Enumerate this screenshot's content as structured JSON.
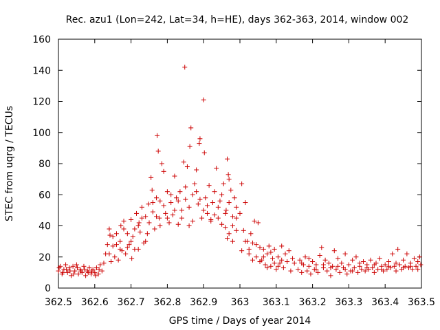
{
  "chart_data": {
    "type": "scatter",
    "title": "Rec. azu1 (Lon=242, Lat=34, h=HE), days 362-363, 2014, window 002",
    "xlabel": "GPS time / Days of year 2014",
    "ylabel": "STEC from uqrg / TECUs",
    "xlim": [
      362.5,
      363.5
    ],
    "ylim": [
      0,
      160
    ],
    "x_ticks": [
      362.5,
      362.6,
      362.7,
      362.8,
      362.9,
      363.0,
      363.1,
      363.2,
      363.3,
      363.4,
      363.5
    ],
    "x_tick_labels": [
      "362.5",
      "362.6",
      "362.7",
      "362.8",
      "362.9",
      "363",
      "363.1",
      "363.2",
      "363.3",
      "363.4",
      "363.5"
    ],
    "y_ticks": [
      0,
      20,
      40,
      60,
      80,
      100,
      120,
      140,
      160
    ],
    "y_tick_labels": [
      "0",
      "20",
      "40",
      "60",
      "80",
      "100",
      "120",
      "140",
      "160"
    ],
    "marker": "+",
    "color": "#cc0000",
    "grid": false,
    "legend": "none",
    "series": [
      {
        "name": "STEC",
        "points": [
          [
            362.5,
            11
          ],
          [
            362.505,
            14
          ],
          [
            362.51,
            9
          ],
          [
            362.515,
            12
          ],
          [
            362.52,
            15
          ],
          [
            362.525,
            10
          ],
          [
            362.53,
            13
          ],
          [
            362.535,
            8
          ],
          [
            362.54,
            14
          ],
          [
            362.545,
            11
          ],
          [
            362.55,
            15
          ],
          [
            362.555,
            9
          ],
          [
            362.56,
            12
          ],
          [
            362.565,
            10
          ],
          [
            362.57,
            14
          ],
          [
            362.575,
            8
          ],
          [
            362.58,
            11
          ],
          [
            362.585,
            13
          ],
          [
            362.59,
            9
          ],
          [
            362.595,
            12
          ],
          [
            362.6,
            10
          ],
          [
            362.605,
            13
          ],
          [
            362.61,
            9
          ],
          [
            362.615,
            15
          ],
          [
            362.62,
            11
          ],
          [
            362.502,
            13
          ],
          [
            362.512,
            10
          ],
          [
            362.522,
            12
          ],
          [
            362.532,
            11
          ],
          [
            362.542,
            9
          ],
          [
            362.552,
            13
          ],
          [
            362.562,
            11
          ],
          [
            362.572,
            12
          ],
          [
            362.582,
            10
          ],
          [
            362.592,
            11
          ],
          [
            362.602,
            8
          ],
          [
            362.612,
            12
          ],
          [
            362.625,
            16
          ],
          [
            362.63,
            22
          ],
          [
            362.635,
            28
          ],
          [
            362.64,
            38
          ],
          [
            362.642,
            34
          ],
          [
            362.645,
            17
          ],
          [
            362.65,
            27
          ],
          [
            362.655,
            20
          ],
          [
            362.66,
            35
          ],
          [
            362.665,
            18
          ],
          [
            362.67,
            30
          ],
          [
            362.672,
            40
          ],
          [
            362.675,
            24
          ],
          [
            362.68,
            43
          ],
          [
            362.685,
            22
          ],
          [
            362.69,
            35
          ],
          [
            362.695,
            28
          ],
          [
            362.7,
            44
          ],
          [
            362.702,
            19
          ],
          [
            362.705,
            33
          ],
          [
            362.71,
            38
          ],
          [
            362.715,
            48
          ],
          [
            362.72,
            25
          ],
          [
            362.722,
            42
          ],
          [
            362.725,
            36
          ],
          [
            362.73,
            52
          ],
          [
            362.735,
            29
          ],
          [
            362.74,
            46
          ],
          [
            362.745,
            35
          ],
          [
            362.748,
            54
          ],
          [
            362.64,
            22
          ],
          [
            362.65,
            33
          ],
          [
            362.66,
            28
          ],
          [
            362.67,
            25
          ],
          [
            362.68,
            38
          ],
          [
            362.69,
            26
          ],
          [
            362.7,
            30
          ],
          [
            362.71,
            25
          ],
          [
            362.72,
            40
          ],
          [
            362.73,
            45
          ],
          [
            362.74,
            30
          ],
          [
            362.75,
            42
          ],
          [
            362.755,
            71
          ],
          [
            362.758,
            63
          ],
          [
            362.76,
            49
          ],
          [
            362.765,
            38
          ],
          [
            362.77,
            58
          ],
          [
            362.772,
            98
          ],
          [
            362.775,
            88
          ],
          [
            362.778,
            45
          ],
          [
            362.78,
            56
          ],
          [
            362.785,
            80
          ],
          [
            362.79,
            75
          ],
          [
            362.795,
            48
          ],
          [
            362.8,
            62
          ],
          [
            362.805,
            42
          ],
          [
            362.81,
            55
          ],
          [
            362.815,
            47
          ],
          [
            362.82,
            72
          ],
          [
            362.825,
            58
          ],
          [
            362.83,
            41
          ],
          [
            362.835,
            62
          ],
          [
            362.84,
            50
          ],
          [
            362.845,
            81
          ],
          [
            362.848,
            142
          ],
          [
            362.85,
            65
          ],
          [
            362.855,
            78
          ],
          [
            362.86,
            40
          ],
          [
            362.862,
            91
          ],
          [
            362.865,
            103
          ],
          [
            362.87,
            60
          ],
          [
            362.875,
            67
          ],
          [
            362.88,
            76
          ],
          [
            362.885,
            54
          ],
          [
            362.888,
            93
          ],
          [
            362.89,
            96
          ],
          [
            362.895,
            45
          ],
          [
            362.9,
            121
          ],
          [
            362.902,
            87
          ],
          [
            362.905,
            58
          ],
          [
            362.91,
            48
          ],
          [
            362.915,
            66
          ],
          [
            362.92,
            43
          ],
          [
            362.925,
            55
          ],
          [
            362.93,
            62
          ],
          [
            362.935,
            77
          ],
          [
            362.94,
            45
          ],
          [
            362.945,
            56
          ],
          [
            362.95,
            60
          ],
          [
            362.955,
            67
          ],
          [
            362.96,
            39
          ],
          [
            362.962,
            50
          ],
          [
            362.965,
            83
          ],
          [
            362.968,
            73
          ],
          [
            362.97,
            55
          ],
          [
            362.975,
            63
          ],
          [
            362.98,
            46
          ],
          [
            362.985,
            58
          ],
          [
            362.99,
            52
          ],
          [
            362.76,
            55
          ],
          [
            362.77,
            46
          ],
          [
            362.78,
            40
          ],
          [
            362.79,
            53
          ],
          [
            362.8,
            45
          ],
          [
            362.81,
            60
          ],
          [
            362.82,
            50
          ],
          [
            362.83,
            56
          ],
          [
            362.84,
            45
          ],
          [
            362.85,
            57
          ],
          [
            362.86,
            52
          ],
          [
            362.87,
            43
          ],
          [
            362.88,
            62
          ],
          [
            362.89,
            57
          ],
          [
            362.9,
            50
          ],
          [
            362.91,
            53
          ],
          [
            362.92,
            44
          ],
          [
            362.93,
            47
          ],
          [
            362.94,
            52
          ],
          [
            362.95,
            41
          ],
          [
            362.96,
            48
          ],
          [
            362.97,
            35
          ],
          [
            362.98,
            40
          ],
          [
            362.99,
            45
          ],
          [
            362.965,
            32
          ],
          [
            362.97,
            70
          ],
          [
            362.98,
            30
          ],
          [
            362.99,
            37
          ],
          [
            363.0,
            48
          ],
          [
            363.005,
            67
          ],
          [
            363.01,
            37
          ],
          [
            363.015,
            55
          ],
          [
            363.02,
            30
          ],
          [
            363.025,
            25
          ],
          [
            363.03,
            35
          ],
          [
            363.035,
            29
          ],
          [
            363.04,
            43
          ],
          [
            363.045,
            20
          ],
          [
            363.05,
            42
          ],
          [
            363.055,
            26
          ],
          [
            363.06,
            18
          ],
          [
            363.065,
            25
          ],
          [
            363.07,
            15
          ],
          [
            363.075,
            22
          ],
          [
            363.08,
            27
          ],
          [
            363.085,
            14
          ],
          [
            363.09,
            19
          ],
          [
            363.095,
            25
          ],
          [
            363.1,
            12
          ],
          [
            363.105,
            20
          ],
          [
            363.11,
            16
          ],
          [
            363.115,
            27
          ],
          [
            363.12,
            13
          ],
          [
            363.125,
            22
          ],
          [
            363.13,
            17
          ],
          [
            363.135,
            24
          ],
          [
            363.14,
            11
          ],
          [
            363.145,
            19
          ],
          [
            363.15,
            16
          ],
          [
            363.005,
            24
          ],
          [
            363.015,
            30
          ],
          [
            363.025,
            22
          ],
          [
            363.035,
            18
          ],
          [
            363.045,
            28
          ],
          [
            363.055,
            17
          ],
          [
            363.065,
            20
          ],
          [
            363.075,
            13
          ],
          [
            363.085,
            23
          ],
          [
            363.095,
            16
          ],
          [
            363.105,
            14
          ],
          [
            363.115,
            18
          ],
          [
            363.16,
            12
          ],
          [
            363.165,
            18
          ],
          [
            363.17,
            10
          ],
          [
            363.175,
            15
          ],
          [
            363.18,
            20
          ],
          [
            363.185,
            11
          ],
          [
            363.19,
            14
          ],
          [
            363.195,
            9
          ],
          [
            363.2,
            17
          ],
          [
            363.205,
            12
          ],
          [
            363.21,
            15
          ],
          [
            363.215,
            10
          ],
          [
            363.22,
            21
          ],
          [
            363.225,
            26
          ],
          [
            363.23,
            13
          ],
          [
            363.235,
            18
          ],
          [
            363.24,
            11
          ],
          [
            363.245,
            16
          ],
          [
            363.25,
            8
          ],
          [
            363.255,
            14
          ],
          [
            363.26,
            24
          ],
          [
            363.265,
            12
          ],
          [
            363.27,
            19
          ],
          [
            363.275,
            10
          ],
          [
            363.28,
            16
          ],
          [
            363.285,
            13
          ],
          [
            363.29,
            22
          ],
          [
            363.295,
            9
          ],
          [
            363.3,
            15
          ],
          [
            363.305,
            11
          ],
          [
            363.31,
            18
          ],
          [
            363.315,
            13
          ],
          [
            363.32,
            20
          ],
          [
            363.325,
            10
          ],
          [
            363.33,
            16
          ],
          [
            363.335,
            12
          ],
          [
            363.17,
            16
          ],
          [
            363.19,
            19
          ],
          [
            363.21,
            12
          ],
          [
            363.23,
            15
          ],
          [
            363.25,
            13
          ],
          [
            363.27,
            14
          ],
          [
            363.29,
            12
          ],
          [
            363.31,
            11
          ],
          [
            363.33,
            14
          ],
          [
            363.34,
            17
          ],
          [
            363.345,
            11
          ],
          [
            363.35,
            15
          ],
          [
            363.355,
            12
          ],
          [
            363.36,
            18
          ],
          [
            363.365,
            13
          ],
          [
            363.37,
            10
          ],
          [
            363.375,
            16
          ],
          [
            363.38,
            12
          ],
          [
            363.385,
            19
          ],
          [
            363.39,
            14
          ],
          [
            363.395,
            11
          ],
          [
            363.4,
            15
          ],
          [
            363.405,
            12
          ],
          [
            363.41,
            17
          ],
          [
            363.415,
            13
          ],
          [
            363.42,
            22
          ],
          [
            363.425,
            14
          ],
          [
            363.43,
            11
          ],
          [
            363.435,
            25
          ],
          [
            363.44,
            15
          ],
          [
            363.445,
            12
          ],
          [
            363.45,
            18
          ],
          [
            363.455,
            14
          ],
          [
            363.46,
            22
          ],
          [
            363.465,
            13
          ],
          [
            363.47,
            16
          ],
          [
            363.475,
            12
          ],
          [
            363.48,
            19
          ],
          [
            363.485,
            14
          ],
          [
            363.49,
            17
          ],
          [
            363.495,
            20
          ],
          [
            363.498,
            15
          ],
          [
            363.35,
            13
          ],
          [
            363.37,
            15
          ],
          [
            363.39,
            12
          ],
          [
            363.41,
            14
          ],
          [
            363.43,
            16
          ],
          [
            363.45,
            13
          ],
          [
            363.47,
            14
          ],
          [
            363.49,
            12
          ]
        ]
      }
    ]
  }
}
